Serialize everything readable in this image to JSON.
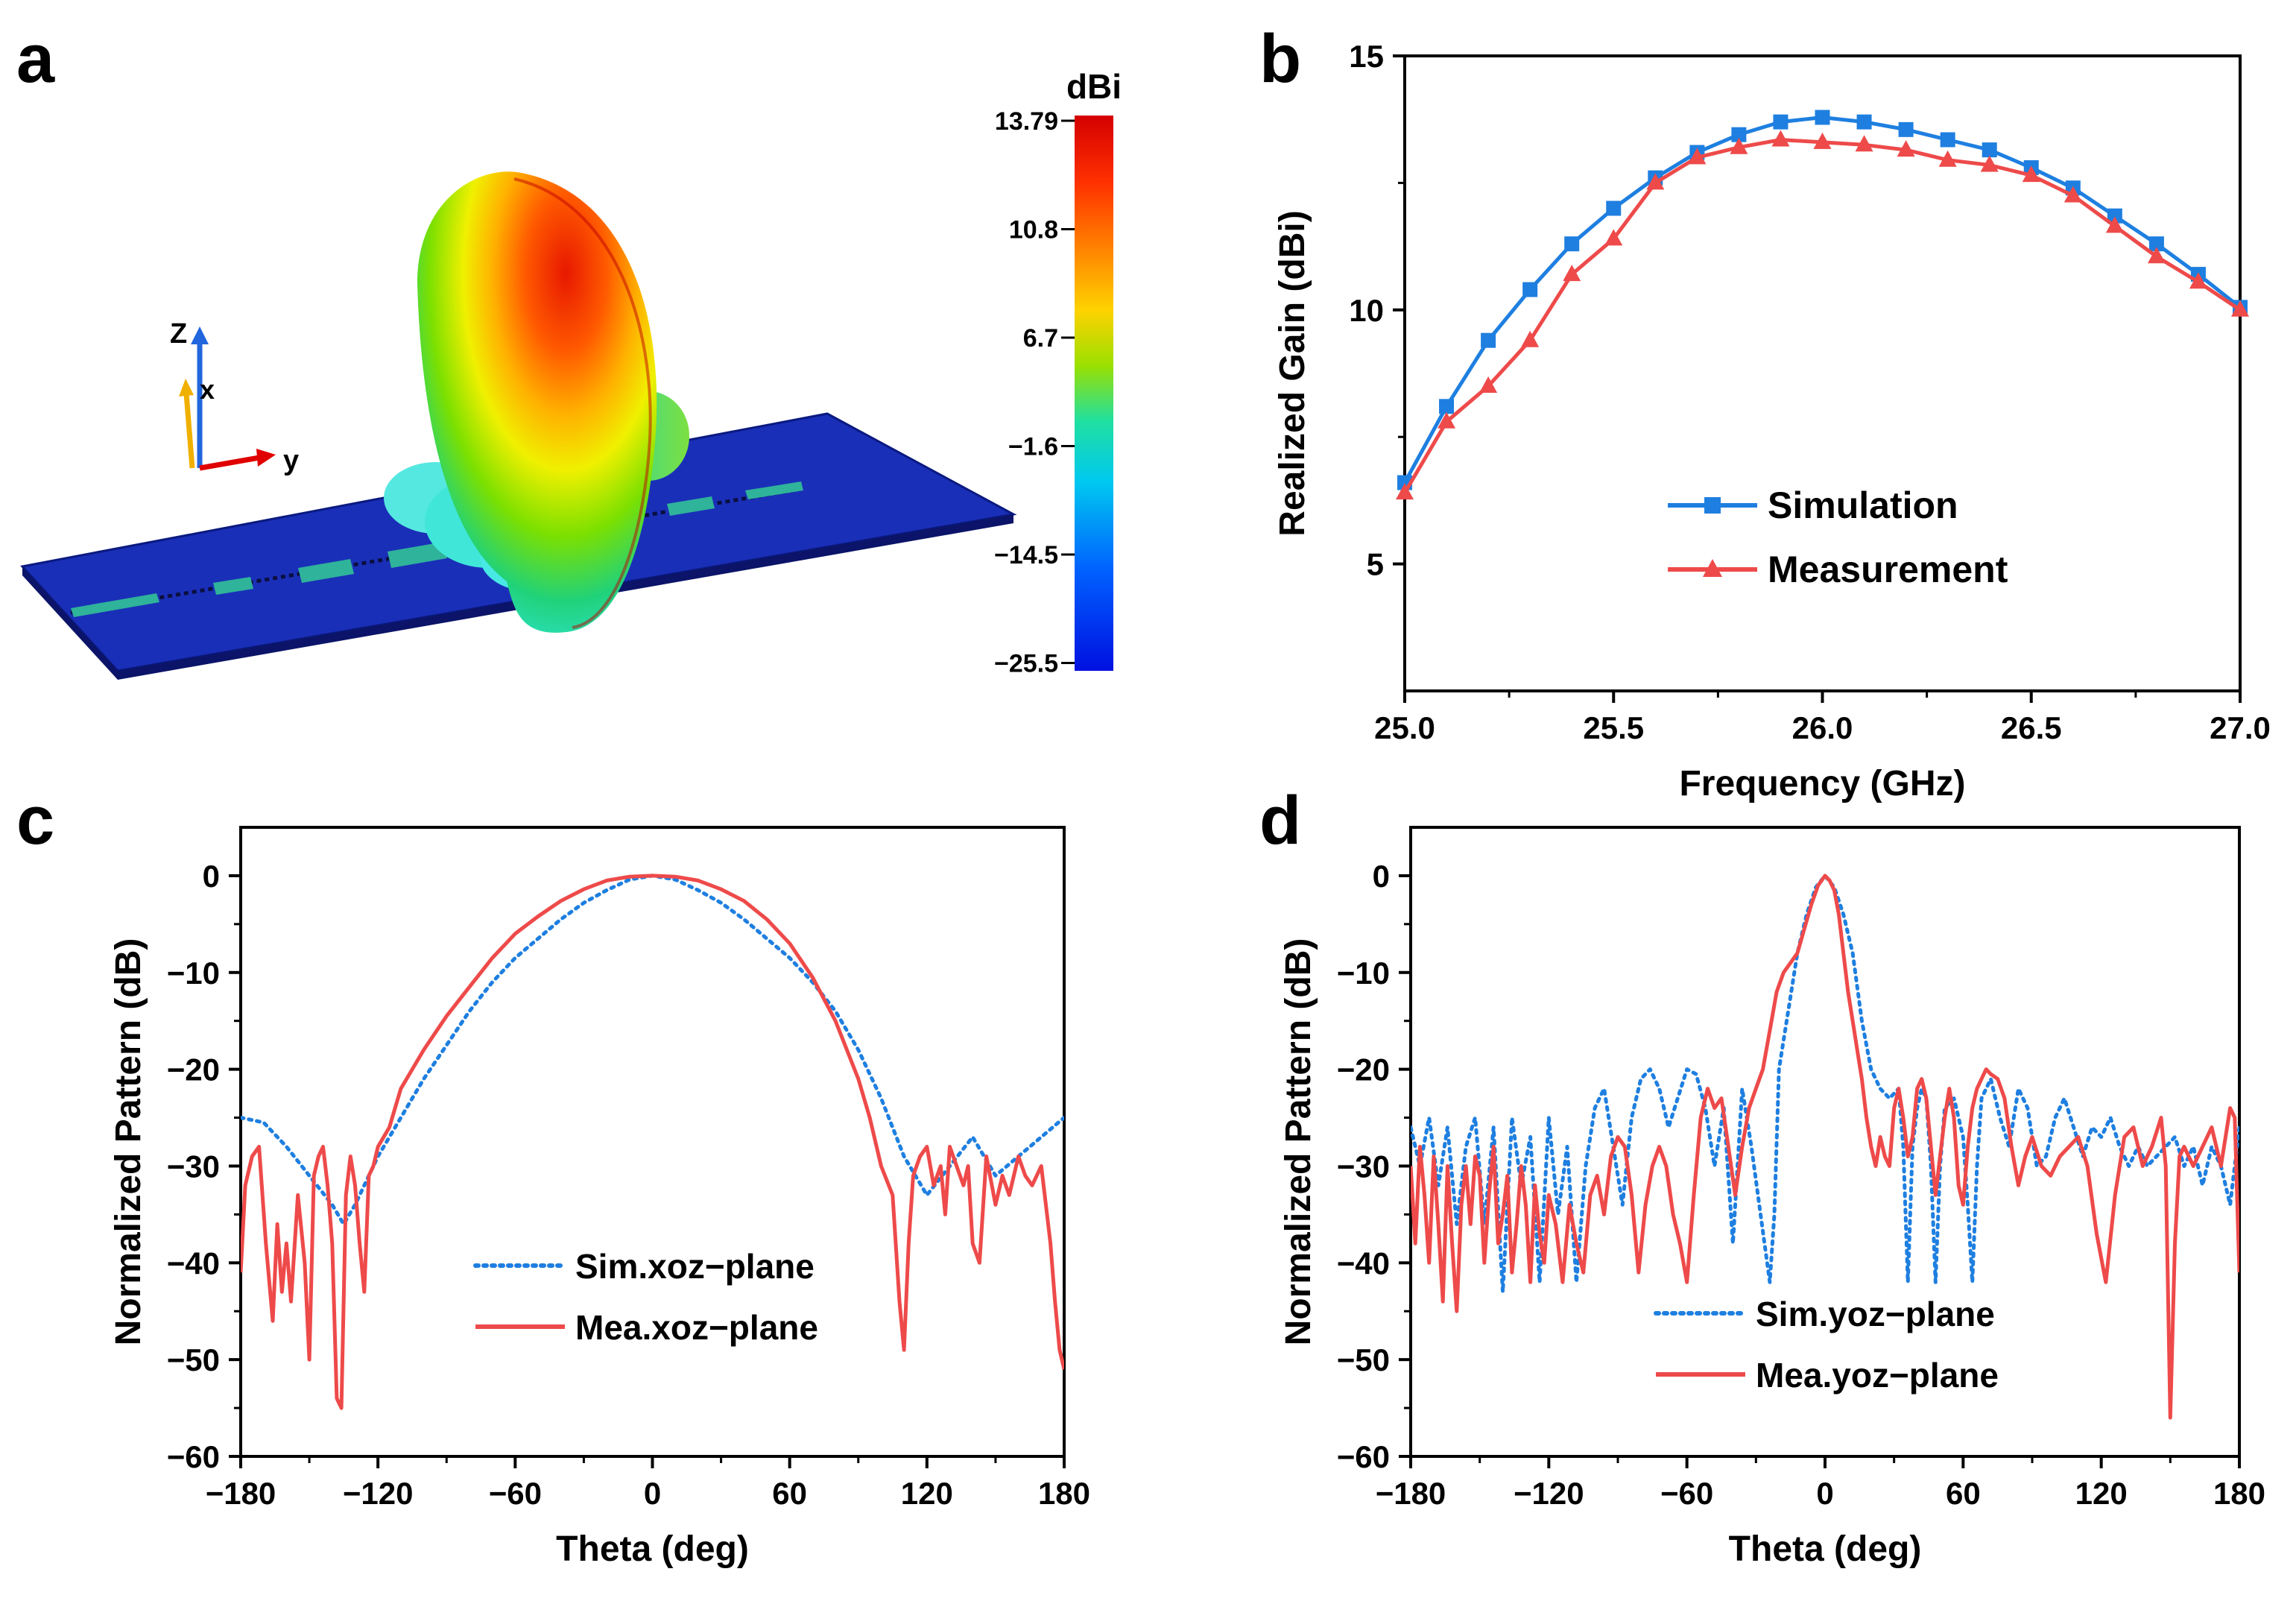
{
  "panel_labels": {
    "a": "a",
    "b": "b",
    "c": "c",
    "d": "d"
  },
  "colors": {
    "sim_blue": "#1E7FE0",
    "mea_red": "#EE4A4A",
    "board": "#1A2FB8",
    "patch": "#2FB39A"
  },
  "panel_a": {
    "unit": "dBi",
    "ticks": [
      "13.79",
      "10.8",
      "6.7",
      "-1.6",
      "-14.5",
      "-25.5"
    ],
    "axes": {
      "z": "Z",
      "x": "x",
      "y": "y"
    }
  },
  "chart_data": [
    {
      "id": "b",
      "type": "line",
      "title": "",
      "xlabel": "Frequency (GHz)",
      "ylabel": "Realized Gain (dBi)",
      "xlim": [
        25.0,
        27.0
      ],
      "ylim": [
        2.5,
        15
      ],
      "xticks": [
        25.0,
        25.5,
        26.0,
        26.5,
        27.0
      ],
      "xtick_labels": [
        "25.0",
        "25.5",
        "26.0",
        "26.5",
        "27.0"
      ],
      "yticks": [
        5,
        10,
        15
      ],
      "ytick_labels": [
        "5",
        "10",
        "15"
      ],
      "x": [
        25.0,
        25.1,
        25.2,
        25.3,
        25.4,
        25.5,
        25.6,
        25.7,
        25.8,
        25.9,
        26.0,
        26.1,
        26.2,
        26.3,
        26.4,
        26.5,
        26.6,
        26.7,
        26.8,
        26.9,
        27.0
      ],
      "series": [
        {
          "name": "Simulation",
          "marker": "square",
          "color": "#1E7FE0",
          "values": [
            6.6,
            8.1,
            9.4,
            10.4,
            11.3,
            12.0,
            12.6,
            13.1,
            13.45,
            13.7,
            13.79,
            13.7,
            13.55,
            13.35,
            13.15,
            12.8,
            12.4,
            11.85,
            11.3,
            10.7,
            10.05
          ]
        },
        {
          "name": "Measurement",
          "marker": "triangle",
          "color": "#EE4A4A",
          "values": [
            6.4,
            7.8,
            8.5,
            9.4,
            10.7,
            11.4,
            12.5,
            13.0,
            13.2,
            13.35,
            13.3,
            13.25,
            13.15,
            12.95,
            12.85,
            12.65,
            12.25,
            11.65,
            11.05,
            10.55,
            10.0
          ]
        }
      ],
      "legend": "center-bottom"
    },
    {
      "id": "c",
      "type": "line",
      "title": "",
      "xlabel": "Theta (deg)",
      "ylabel": "Normalized Pattern (dB)",
      "xlim": [
        -180,
        180
      ],
      "ylim": [
        -60,
        5
      ],
      "xticks": [
        -180,
        -120,
        -60,
        0,
        60,
        120,
        180
      ],
      "xtick_labels": [
        "-180",
        "-120",
        "-60",
        "0",
        "60",
        "120",
        "180"
      ],
      "yticks": [
        0,
        -10,
        -20,
        -30,
        -40,
        -50,
        -60
      ],
      "ytick_labels": [
        "0",
        "-10",
        "-20",
        "-30",
        "-40",
        "-50",
        "-60"
      ],
      "series": [
        {
          "name": "Sim.xoz-plane",
          "style": "dotted",
          "color": "#1E7FE0",
          "x": [
            -180,
            -170,
            -160,
            -150,
            -140,
            -135,
            -130,
            -120,
            -110,
            -100,
            -90,
            -80,
            -70,
            -60,
            -50,
            -40,
            -30,
            -20,
            -10,
            0,
            10,
            20,
            30,
            40,
            50,
            60,
            70,
            80,
            90,
            100,
            110,
            120,
            130,
            140,
            150,
            160,
            170,
            180
          ],
          "y": [
            -25,
            -25.5,
            -28,
            -31,
            -34,
            -36,
            -34,
            -29,
            -25,
            -21,
            -17.5,
            -14,
            -11,
            -8.5,
            -6.5,
            -4.5,
            -2.8,
            -1.5,
            -0.4,
            0,
            -0.4,
            -1.5,
            -2.8,
            -4.5,
            -6.5,
            -8.5,
            -11,
            -14,
            -18,
            -23,
            -29,
            -33,
            -30,
            -27,
            -31,
            -29,
            -27,
            -25
          ]
        },
        {
          "name": "Mea.xoz-plane",
          "style": "solid",
          "color": "#EE4A4A",
          "x": [
            -180,
            -178,
            -175,
            -172,
            -169,
            -166,
            -164,
            -162,
            -160,
            -158,
            -155,
            -152,
            -150,
            -148,
            -146,
            -144,
            -142,
            -140,
            -138,
            -136,
            -134,
            -132,
            -130,
            -128,
            -126,
            -124,
            -122,
            -120,
            -115,
            -110,
            -100,
            -90,
            -80,
            -70,
            -60,
            -50,
            -40,
            -30,
            -20,
            -10,
            0,
            10,
            20,
            30,
            40,
            50,
            60,
            70,
            80,
            90,
            95,
            100,
            105,
            108,
            110,
            112,
            114,
            117,
            120,
            123,
            126,
            128,
            130,
            133,
            136,
            138,
            140,
            143,
            146,
            150,
            153,
            156,
            160,
            163,
            166,
            170,
            174,
            176,
            178,
            180
          ],
          "y": [
            -41,
            -32,
            -29,
            -28,
            -38,
            -46,
            -36,
            -43,
            -38,
            -44,
            -33,
            -40,
            -50,
            -31,
            -29,
            -28,
            -32,
            -38,
            -54,
            -55,
            -33,
            -29,
            -32,
            -38,
            -43,
            -31,
            -30,
            -28,
            -26,
            -22,
            -18,
            -14.5,
            -11.5,
            -8.5,
            -6,
            -4.2,
            -2.6,
            -1.4,
            -0.5,
            -0.1,
            0,
            -0.1,
            -0.5,
            -1.4,
            -2.6,
            -4.5,
            -7,
            -10.5,
            -15,
            -21,
            -25,
            -30,
            -33,
            -44,
            -49,
            -38,
            -31,
            -29,
            -28,
            -32,
            -30,
            -35,
            -28,
            -30,
            -32,
            -30,
            -38,
            -40,
            -29,
            -34,
            -31,
            -33,
            -29,
            -31,
            -32,
            -30,
            -38,
            -44,
            -49,
            -51
          ]
        }
      ],
      "legend": "center-bottom"
    },
    {
      "id": "d",
      "type": "line",
      "title": "",
      "xlabel": "Theta (deg)",
      "ylabel": "Normalized Pattern (dB)",
      "xlim": [
        -180,
        180
      ],
      "ylim": [
        -60,
        5
      ],
      "xticks": [
        -180,
        -120,
        -60,
        0,
        60,
        120,
        180
      ],
      "xtick_labels": [
        "-180",
        "-120",
        "-60",
        "0",
        "60",
        "120",
        "180"
      ],
      "yticks": [
        0,
        -10,
        -20,
        -30,
        -40,
        -50,
        -60
      ],
      "ytick_labels": [
        "0",
        "-10",
        "-20",
        "-30",
        "-40",
        "-50",
        "-60"
      ],
      "series": [
        {
          "name": "Sim.yoz-plane",
          "style": "dotted",
          "color": "#1E7FE0",
          "x": [
            -180,
            -176,
            -172,
            -168,
            -164,
            -160,
            -156,
            -152,
            -148,
            -144,
            -140,
            -136,
            -132,
            -128,
            -124,
            -120,
            -116,
            -112,
            -108,
            -104,
            -100,
            -96,
            -92,
            -88,
            -84,
            -80,
            -76,
            -72,
            -68,
            -64,
            -60,
            -56,
            -52,
            -48,
            -44,
            -40,
            -36,
            -32,
            -28,
            -24,
            -22,
            -20,
            -16,
            -12,
            -8,
            -4,
            0,
            4,
            8,
            12,
            16,
            20,
            24,
            28,
            32,
            34,
            36,
            38,
            40,
            42,
            44,
            46,
            48,
            50,
            52,
            56,
            60,
            62,
            64,
            66,
            68,
            72,
            76,
            80,
            84,
            88,
            92,
            96,
            100,
            104,
            108,
            112,
            116,
            120,
            124,
            128,
            132,
            136,
            140,
            144,
            148,
            152,
            156,
            160,
            164,
            168,
            172,
            176,
            180
          ],
          "y": [
            -26,
            -30,
            -25,
            -32,
            -26,
            -36,
            -28,
            -25,
            -36,
            -26,
            -43,
            -25,
            -32,
            -27,
            -42,
            -25,
            -35,
            -28,
            -42,
            -30,
            -24,
            -22,
            -28,
            -34,
            -25,
            -21,
            -20,
            -22,
            -26,
            -23,
            -20,
            -20.5,
            -24,
            -30,
            -24,
            -38,
            -22,
            -28,
            -35,
            -42,
            -35,
            -20,
            -14,
            -8,
            -4,
            -1.2,
            0,
            -1.2,
            -4,
            -8,
            -15,
            -20,
            -22,
            -23,
            -22,
            -28,
            -42,
            -28,
            -24,
            -22,
            -23,
            -30,
            -42,
            -30,
            -24,
            -23,
            -27,
            -34,
            -42,
            -30,
            -23,
            -21,
            -25,
            -28,
            -22,
            -24,
            -30,
            -29,
            -25,
            -23,
            -26,
            -29,
            -26,
            -27,
            -25,
            -28,
            -30,
            -28,
            -30,
            -29,
            -28,
            -27,
            -30,
            -28,
            -32,
            -28,
            -30,
            -34,
            -26
          ]
        },
        {
          "name": "Mea.yoz-plane",
          "style": "solid",
          "color": "#EE4A4A",
          "x": [
            -180,
            -178,
            -176,
            -174,
            -172,
            -170,
            -168,
            -166,
            -164,
            -162,
            -160,
            -158,
            -156,
            -154,
            -152,
            -150,
            -148,
            -146,
            -144,
            -142,
            -140,
            -138,
            -136,
            -134,
            -132,
            -130,
            -128,
            -126,
            -124,
            -122,
            -120,
            -117,
            -114,
            -111,
            -108,
            -105,
            -102,
            -99,
            -96,
            -93,
            -90,
            -87,
            -84,
            -81,
            -78,
            -75,
            -72,
            -69,
            -66,
            -63,
            -60,
            -57,
            -54,
            -51,
            -48,
            -45,
            -42,
            -39,
            -36,
            -33,
            -30,
            -27,
            -24,
            -21,
            -18,
            -15,
            -12,
            -9,
            -6,
            -3,
            0,
            2,
            4,
            6,
            8,
            10,
            12,
            14,
            16,
            18,
            20,
            22,
            24,
            26,
            28,
            30,
            32,
            34,
            36,
            38,
            40,
            42,
            44,
            46,
            48,
            50,
            52,
            54,
            56,
            58,
            60,
            62,
            64,
            66,
            68,
            70,
            72,
            75,
            78,
            81,
            84,
            87,
            90,
            94,
            98,
            102,
            106,
            110,
            114,
            118,
            122,
            126,
            130,
            134,
            138,
            142,
            146,
            148,
            150,
            152,
            154,
            156,
            160,
            164,
            168,
            172,
            176,
            178,
            180
          ],
          "y": [
            -30,
            -38,
            -28,
            -33,
            -40,
            -29,
            -36,
            -44,
            -30,
            -38,
            -45,
            -34,
            -30,
            -36,
            -29,
            -31,
            -40,
            -33,
            -28,
            -38,
            -35,
            -31,
            -41,
            -36,
            -30,
            -34,
            -42,
            -32,
            -37,
            -40,
            -33,
            -36,
            -42,
            -34,
            -38,
            -41,
            -33,
            -31,
            -35,
            -29,
            -27,
            -28,
            -33,
            -41,
            -34,
            -30,
            -28,
            -30,
            -35,
            -38,
            -42,
            -33,
            -25,
            -22,
            -24,
            -23,
            -28,
            -33,
            -28,
            -24,
            -22,
            -20,
            -16,
            -12,
            -10,
            -9,
            -8,
            -5.5,
            -3,
            -1,
            0,
            -0.5,
            -1.5,
            -4,
            -8,
            -12,
            -15,
            -18,
            -21,
            -25,
            -28,
            -30,
            -27,
            -29,
            -30,
            -24,
            -22,
            -25,
            -29,
            -27,
            -22,
            -21,
            -23,
            -28,
            -33,
            -29,
            -25,
            -22,
            -25,
            -32,
            -34,
            -28,
            -24,
            -22,
            -21,
            -20,
            -20.5,
            -21,
            -23,
            -28,
            -32,
            -29,
            -27,
            -30,
            -31,
            -29,
            -28,
            -27,
            -30,
            -37,
            -42,
            -33,
            -27,
            -26,
            -30,
            -28,
            -25,
            -30,
            -56,
            -38,
            -29,
            -28,
            -30,
            -28,
            -26,
            -30,
            -24,
            -25,
            -41
          ]
        }
      ],
      "legend": "center-bottom"
    }
  ]
}
